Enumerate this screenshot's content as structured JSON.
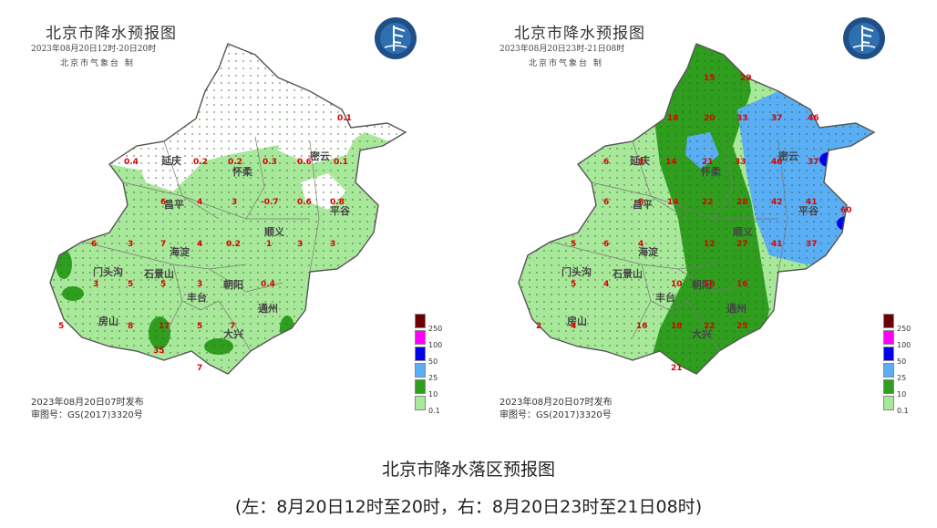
{
  "caption": {
    "title": "北京市降水落区预报图",
    "subtitle": "(左：8月20日12时至20时，右：8月20日23时至21日08时)"
  },
  "districts": [
    "延庆",
    "怀柔",
    "密云",
    "昌平",
    "平谷",
    "顺义",
    "海淀",
    "门头沟",
    "石景山",
    "朝阳",
    "丰台",
    "通州",
    "房山",
    "大兴"
  ],
  "panels": [
    {
      "title": "北京市降水预报图",
      "subtitle": "2023年08月20日12时-20日20时",
      "agency": "北京市气象台 制",
      "issued": "2023年08月20日07时发布",
      "approval": "审图号：GS(2017)3320号",
      "values": [
        "0.1",
        "0.4",
        "0.2",
        "0.2",
        "0.3",
        "0.6",
        "0.1",
        "6",
        "4",
        "3",
        "-0.7",
        "0.6",
        "0.8",
        "6",
        "3",
        "7",
        "4",
        "0.2",
        "1",
        "3",
        "3",
        "3",
        "5",
        "5",
        "3",
        "0.4",
        "5",
        "8",
        "17",
        "5",
        "7",
        "35",
        "7"
      ]
    },
    {
      "title": "北京市降水预报图",
      "subtitle": "2023年08月20日23时-21日08时",
      "agency": "北京市气象台 制",
      "issued": "2023年08月20日07时发布",
      "approval": "审图号：GS(2017)3320号",
      "values": [
        "29",
        "15",
        "18",
        "20",
        "33",
        "37",
        "46",
        "6",
        "8",
        "14",
        "21",
        "33",
        "46",
        "37",
        "6",
        "8",
        "14",
        "22",
        "28",
        "42",
        "41",
        "60",
        "5",
        "6",
        "4",
        "12",
        "27",
        "41",
        "37",
        "5",
        "4",
        "10",
        "18",
        "16",
        "2",
        "4",
        "16",
        "18",
        "22",
        "25",
        "21"
      ]
    }
  ],
  "legend": {
    "labels": [
      "250",
      "100",
      "50",
      "25",
      "10",
      "0.1"
    ],
    "colors": [
      "#6b0000",
      "#ff00ff",
      "#0000ee",
      "#5aaef5",
      "#2f9e1f",
      "#a8e89a"
    ]
  }
}
